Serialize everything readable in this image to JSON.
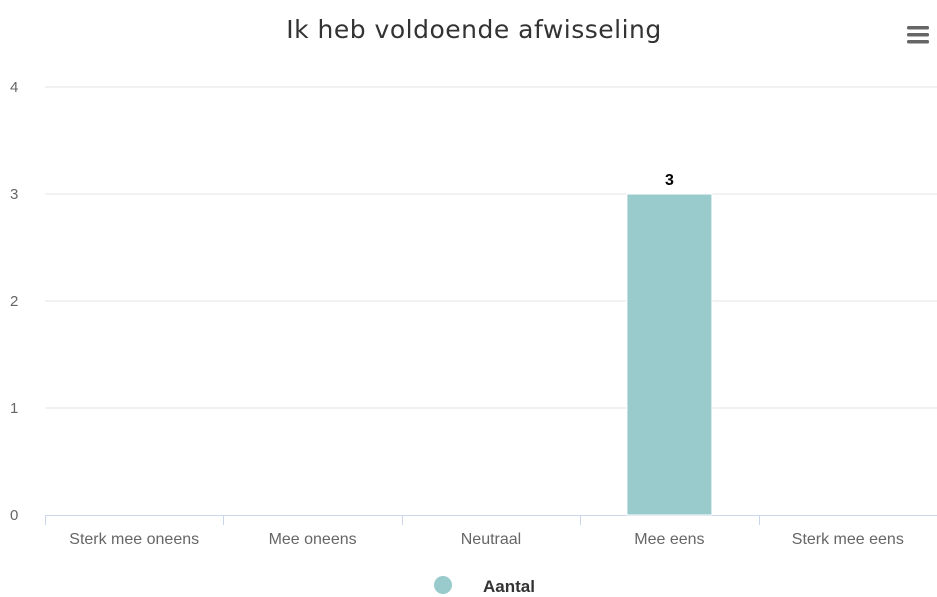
{
  "chart_data": {
    "type": "bar",
    "title": "Ik heb voldoende afwisseling",
    "categories": [
      "Sterk mee oneens",
      "Mee oneens",
      "Neutraal",
      "Mee eens",
      "Sterk mee eens"
    ],
    "series": [
      {
        "name": "Aantal",
        "values": [
          0,
          0,
          0,
          3,
          0
        ],
        "color": "#9ACBCC"
      }
    ],
    "data_labels": [
      "",
      "",
      "",
      "3",
      ""
    ],
    "y_ticks": [
      "0",
      "1",
      "2",
      "3",
      "4"
    ],
    "ylim": [
      0,
      4
    ],
    "grid": true,
    "legend_position": "bottom-center",
    "gridline_color": "#E6E6E6",
    "axis_color": "#CCD6EB"
  },
  "menu": {
    "icon": "hamburger-menu-icon"
  }
}
